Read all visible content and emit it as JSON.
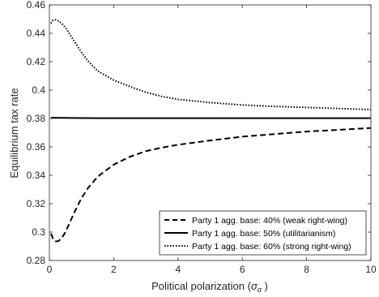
{
  "chart_data": {
    "type": "line",
    "title": "",
    "xlabel": "Political polarization (",
    "xlabel_symbol": "σ",
    "xlabel_symbol_sub": "α",
    "xlabel_close": " )",
    "ylabel": "Equilibrium tax rate",
    "xlim": [
      0,
      10
    ],
    "ylim": [
      0.28,
      0.46
    ],
    "xticks": [
      0,
      2,
      4,
      6,
      8,
      10
    ],
    "yticks": [
      0.28,
      0.3,
      0.32,
      0.34,
      0.36,
      0.38,
      0.4,
      0.42,
      0.44,
      0.46
    ],
    "ytick_labels": [
      "0.28",
      "0.3",
      "0.32",
      "0.34",
      "0.36",
      "0.38",
      "0.4",
      "0.42",
      "0.44",
      "0.46"
    ],
    "grid": false,
    "legend_position": "bottom-right",
    "series": [
      {
        "name": "Party 1 agg. base: 40% (weak right-wing)",
        "style": "dashed",
        "color": "#000000",
        "x": [
          0.05,
          0.1,
          0.15,
          0.2,
          0.25,
          0.3,
          0.4,
          0.5,
          0.6,
          0.8,
          1.0,
          1.2,
          1.5,
          2.0,
          2.5,
          3.0,
          3.5,
          4.0,
          5.0,
          6.0,
          7.0,
          8.0,
          9.0,
          10.0
        ],
        "y": [
          0.299,
          0.296,
          0.294,
          0.2935,
          0.2935,
          0.294,
          0.2965,
          0.3,
          0.305,
          0.315,
          0.324,
          0.331,
          0.339,
          0.3475,
          0.353,
          0.357,
          0.3595,
          0.3615,
          0.3645,
          0.3672,
          0.369,
          0.3708,
          0.372,
          0.3733
        ]
      },
      {
        "name": "Party 1 agg. base: 50% (utilitarianism)",
        "style": "solid",
        "color": "#000000",
        "x": [
          0.05,
          1,
          2,
          3,
          4,
          5,
          6,
          7,
          8,
          9,
          10
        ],
        "y": [
          0.3805,
          0.3803,
          0.3802,
          0.3802,
          0.3802,
          0.3802,
          0.3802,
          0.3802,
          0.3802,
          0.3802,
          0.3802
        ]
      },
      {
        "name": "Party 1 agg. base: 60% (strong right-wing)",
        "style": "dotted",
        "color": "#000000",
        "x": [
          0.05,
          0.1,
          0.15,
          0.2,
          0.25,
          0.3,
          0.4,
          0.5,
          0.6,
          0.8,
          1.0,
          1.2,
          1.5,
          2.0,
          2.5,
          3.0,
          3.5,
          4.0,
          5.0,
          6.0,
          7.0,
          8.0,
          9.0,
          10.0
        ],
        "y": [
          0.447,
          0.449,
          0.4495,
          0.4495,
          0.449,
          0.4485,
          0.4465,
          0.444,
          0.4405,
          0.4335,
          0.4265,
          0.4205,
          0.4135,
          0.407,
          0.4025,
          0.3985,
          0.3955,
          0.3935,
          0.3912,
          0.3895,
          0.3885,
          0.3878,
          0.387,
          0.3863
        ]
      }
    ]
  }
}
